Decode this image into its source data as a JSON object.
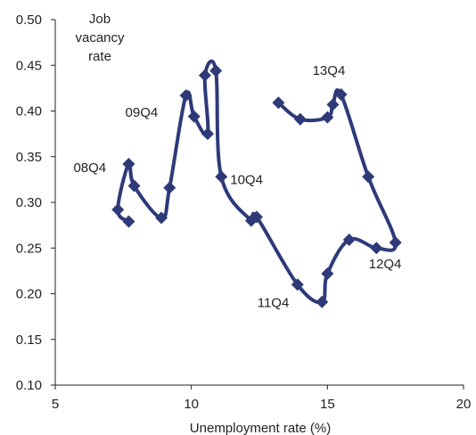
{
  "chart_data": {
    "type": "scatter",
    "title": "",
    "xlabel": "Unemployment rate (%)",
    "ylabel_lines": [
      "Job",
      "vacancy",
      "rate"
    ],
    "xlim": [
      5,
      20
    ],
    "ylim": [
      0.1,
      0.5
    ],
    "x_ticks": [
      "5",
      "10",
      "15",
      "20"
    ],
    "y_ticks": [
      "0.10",
      "0.15",
      "0.20",
      "0.25",
      "0.30",
      "0.35",
      "0.40",
      "0.45",
      "0.50"
    ],
    "grid": false,
    "legend": "none",
    "connected_line": true,
    "series": [
      {
        "color": "#2e3a78",
        "marker": "diamond",
        "points": [
          {
            "x": 7.7,
            "y": 0.279
          },
          {
            "x": 7.3,
            "y": 0.292
          },
          {
            "x": 7.7,
            "y": 0.342
          },
          {
            "x": 7.9,
            "y": 0.318
          },
          {
            "x": 8.9,
            "y": 0.283
          },
          {
            "x": 9.2,
            "y": 0.316
          },
          {
            "x": 9.8,
            "y": 0.417
          },
          {
            "x": 10.1,
            "y": 0.394
          },
          {
            "x": 10.6,
            "y": 0.375
          },
          {
            "x": 10.5,
            "y": 0.439
          },
          {
            "x": 10.9,
            "y": 0.444
          },
          {
            "x": 11.1,
            "y": 0.328
          },
          {
            "x": 12.2,
            "y": 0.28
          },
          {
            "x": 12.4,
            "y": 0.284
          },
          {
            "x": 13.9,
            "y": 0.21
          },
          {
            "x": 14.8,
            "y": 0.191
          },
          {
            "x": 15.0,
            "y": 0.222
          },
          {
            "x": 15.8,
            "y": 0.259
          },
          {
            "x": 16.8,
            "y": 0.25
          },
          {
            "x": 17.5,
            "y": 0.256
          },
          {
            "x": 16.5,
            "y": 0.328
          },
          {
            "x": 15.5,
            "y": 0.418
          },
          {
            "x": 15.2,
            "y": 0.407
          },
          {
            "x": 15.0,
            "y": 0.393
          },
          {
            "x": 14.0,
            "y": 0.391
          },
          {
            "x": 13.2,
            "y": 0.409
          }
        ]
      }
    ],
    "annotations": [
      {
        "text": "08Q4",
        "x": 7.7,
        "y": 0.342
      },
      {
        "text": "09Q4",
        "x": 9.8,
        "y": 0.417
      },
      {
        "text": "10Q4",
        "x": 11.1,
        "y": 0.328
      },
      {
        "text": "11Q4",
        "x": 13.9,
        "y": 0.21
      },
      {
        "text": "12Q4",
        "x": 17.5,
        "y": 0.256
      },
      {
        "text": "13Q4",
        "x": 15.5,
        "y": 0.418
      }
    ]
  }
}
